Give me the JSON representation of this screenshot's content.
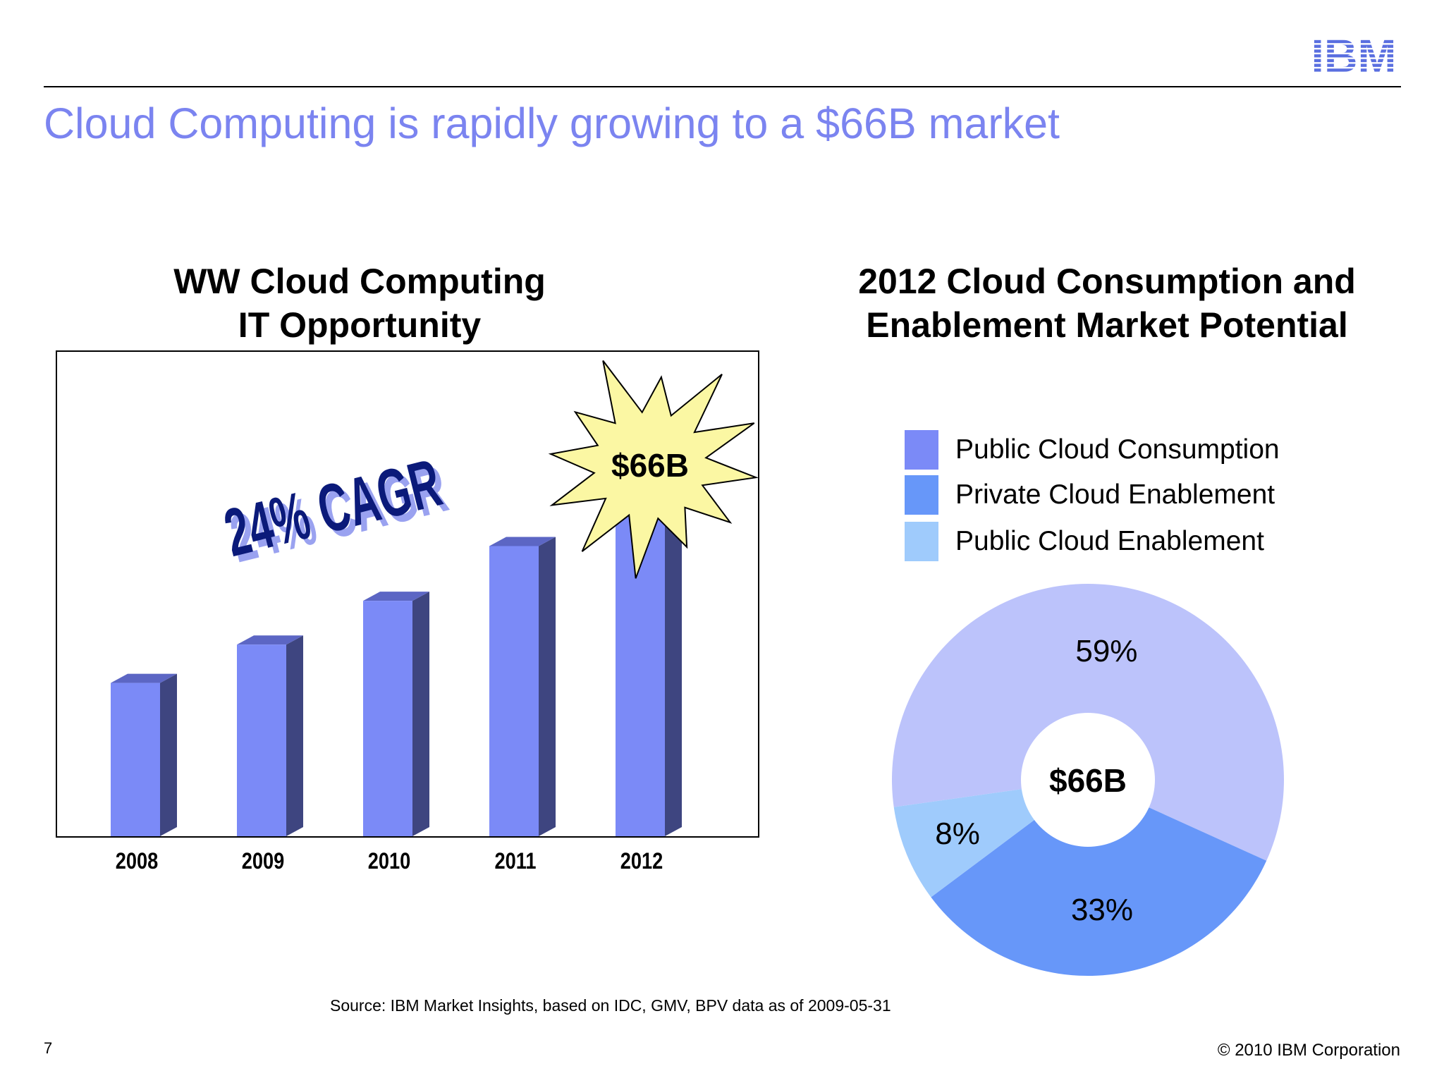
{
  "header": {
    "logo_text": "IBM",
    "title": "Cloud Computing is rapidly growing to a $66B market"
  },
  "colors": {
    "title": "#7b84f0",
    "bar_front": "#7b8af7",
    "bar_side": "#3e4580",
    "bar_top": "#5c66c4",
    "burst_fill": "#fbf7a3",
    "cagr_text": "#0b1a7a",
    "cagr_shadow": "#9aa2f0"
  },
  "chart_data": [
    {
      "type": "bar",
      "title": "WW Cloud Computing IT Opportunity",
      "title_lines": [
        "WW Cloud Computing",
        "IT Opportunity"
      ],
      "categories": [
        "2008",
        "2009",
        "2010",
        "2011",
        "2012"
      ],
      "values": [
        28,
        35,
        43,
        53,
        66
      ],
      "ylim": [
        0,
        85
      ],
      "grid": false,
      "callout": "$66B",
      "annotation": "24% CAGR"
    },
    {
      "type": "pie",
      "title": "2012 Cloud Consumption and Enablement Market Potential",
      "title_lines": [
        "2012 Cloud Consumption and",
        "Enablement Market Potential"
      ],
      "center_label": "$66B",
      "legend_position": "top",
      "slices": [
        {
          "name": "Public Cloud Consumption",
          "value": 59,
          "label": "59%",
          "color": "#bcc3fb"
        },
        {
          "name": "Private Cloud Enablement",
          "value": 33,
          "label": "33%",
          "color": "#6797f9"
        },
        {
          "name": "Public Cloud Enablement",
          "value": 8,
          "label": "8%",
          "color": "#9fcbfc"
        }
      ],
      "legend": [
        {
          "label": "Public Cloud Consumption",
          "color": "#7b8af7"
        },
        {
          "label": "Private Cloud Enablement",
          "color": "#6797f9"
        },
        {
          "label": "Public Cloud Enablement",
          "color": "#9fcbfc"
        }
      ]
    }
  ],
  "footer": {
    "source": "Source: IBM Market Insights, based on IDC, GMV, BPV data as of 2009-05-31",
    "page_number": "7",
    "copyright": "© 2010 IBM Corporation"
  }
}
